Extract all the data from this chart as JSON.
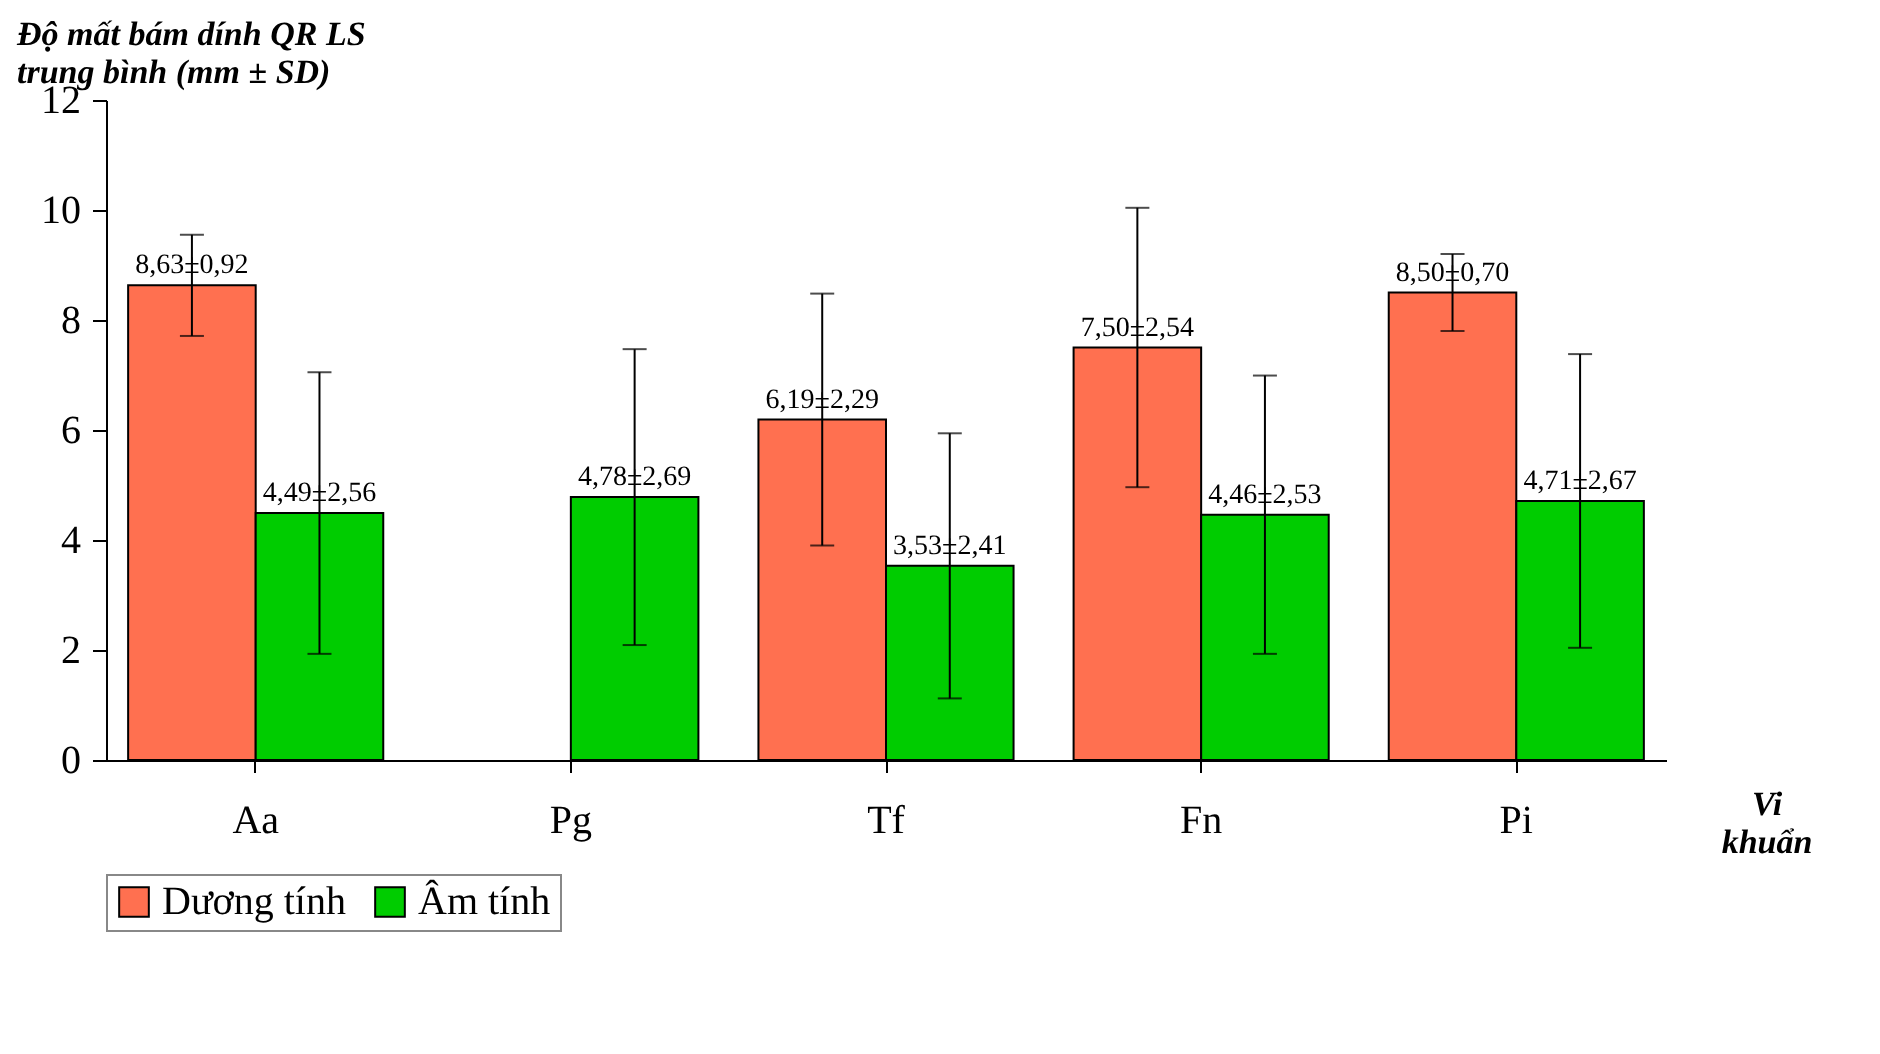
{
  "chart_data": {
    "type": "bar",
    "ylabel": "Độ mất bám dính QR LS trung bình (mm ± SD)",
    "xlabel": "Vi khuẩn",
    "categories": [
      "Aa",
      "Pg",
      "Tf",
      "Fn",
      "Pi"
    ],
    "series": [
      {
        "name": "Dương tính",
        "color": "#ff7050",
        "values": [
          8.63,
          0,
          6.19,
          7.5,
          8.5
        ],
        "errors": [
          0.92,
          null,
          2.29,
          2.54,
          0.7
        ],
        "value_labels": [
          "8,63±0,92",
          null,
          "6,19±2,29",
          "7,50±2,54",
          "8,50±0,70"
        ]
      },
      {
        "name": "Âm tính",
        "color": "#00cc00",
        "values": [
          4.49,
          4.78,
          3.53,
          4.46,
          4.71
        ],
        "errors": [
          2.56,
          2.69,
          2.41,
          2.53,
          2.67
        ],
        "value_labels": [
          "4,49±2,56",
          "4,78±2,69",
          "3,53±2,41",
          "4,46±2,53",
          "4,71±2,67"
        ]
      }
    ],
    "ylim": [
      0,
      12
    ],
    "yticks": [
      0,
      2,
      4,
      6,
      8,
      10,
      12
    ],
    "legend": "bottom",
    "grid": false
  }
}
